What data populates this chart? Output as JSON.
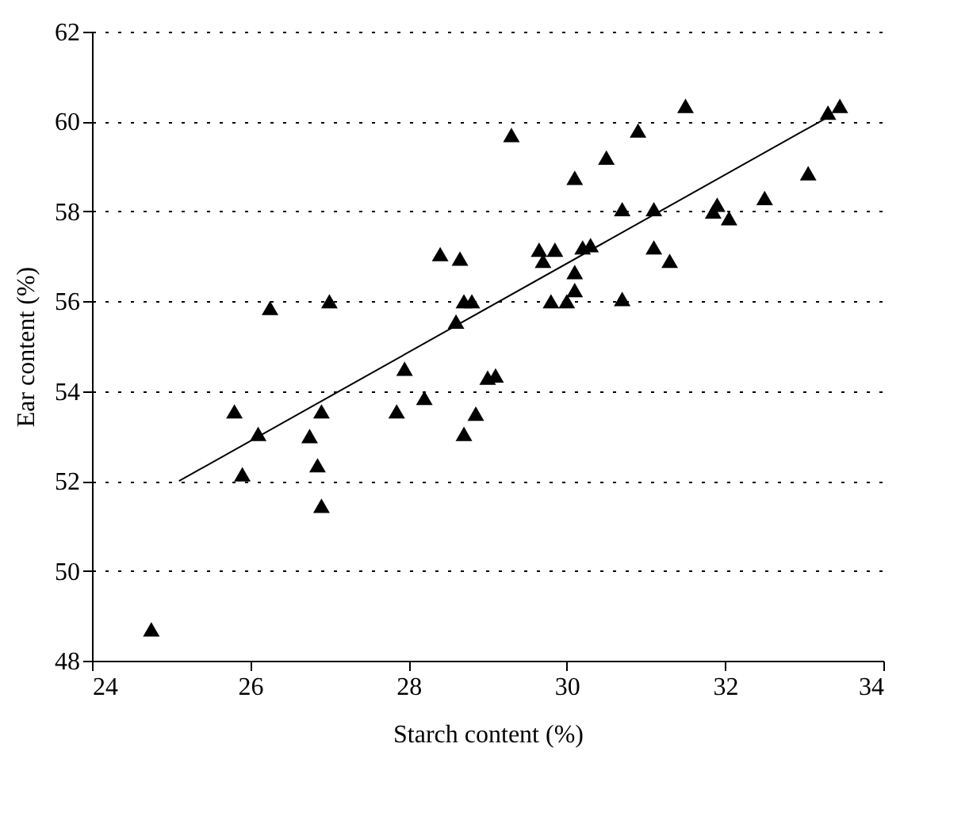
{
  "chart_data": {
    "type": "scatter",
    "xlabel": "Starch content (%)",
    "ylabel": "Ear content (%)",
    "xlim": [
      24,
      34
    ],
    "xticks": [
      24,
      26,
      28,
      30,
      32,
      34
    ],
    "ylim": [
      48,
      62
    ],
    "yticks": [
      48,
      50,
      52,
      54,
      56,
      58,
      60,
      62
    ],
    "grid": "y",
    "series": [
      {
        "color": "#000000",
        "marker": "triangle",
        "x": [
          24.75,
          25.8,
          25.9,
          26.1,
          26.25,
          26.75,
          26.85,
          26.9,
          26.9,
          27.0,
          27.85,
          27.95,
          28.2,
          28.4,
          28.6,
          28.65,
          28.7,
          28.7,
          28.8,
          28.85,
          29.0,
          29.1,
          29.3,
          29.65,
          29.7,
          29.8,
          29.85,
          30.0,
          30.1,
          30.1,
          30.1,
          30.2,
          30.3,
          30.5,
          30.7,
          30.7,
          30.9,
          31.1,
          31.1,
          31.3,
          31.5,
          31.85,
          31.9,
          32.05,
          32.5,
          33.05,
          33.3,
          33.45
        ],
        "values": [
          48.7,
          53.55,
          52.15,
          53.05,
          55.85,
          53.0,
          52.35,
          53.55,
          51.45,
          56.0,
          53.55,
          54.5,
          53.85,
          57.05,
          55.55,
          56.95,
          56.0,
          53.05,
          56.0,
          53.5,
          54.3,
          54.35,
          59.7,
          57.15,
          56.9,
          56.0,
          57.15,
          56.0,
          58.75,
          56.25,
          56.65,
          57.2,
          57.25,
          59.2,
          58.05,
          56.05,
          59.8,
          58.05,
          57.2,
          56.9,
          60.35,
          58.0,
          58.15,
          57.85,
          58.3,
          58.85,
          60.2,
          60.35
        ]
      },
      {
        "type": "line",
        "color": "#000000",
        "marker": "none",
        "line_style": "solid",
        "x": [
          25.1,
          33.3
        ],
        "values": [
          52.0,
          60.1
        ]
      }
    ]
  }
}
